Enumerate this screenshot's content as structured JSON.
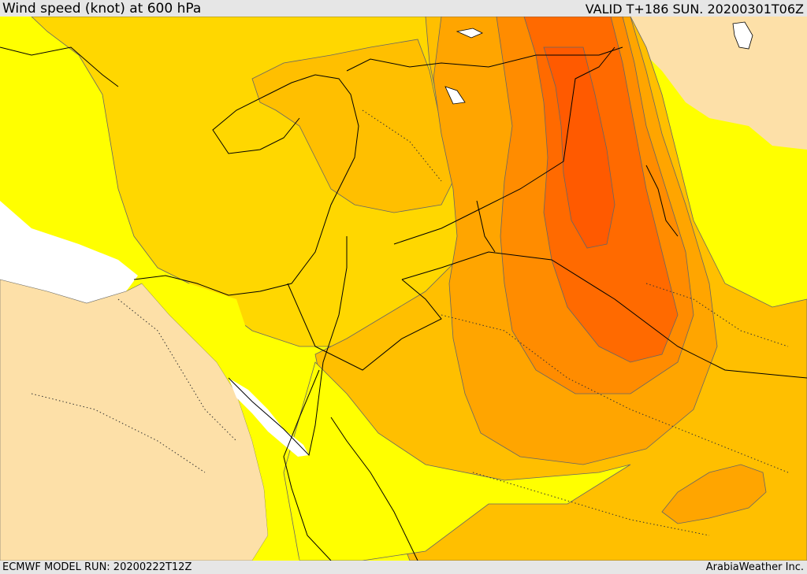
{
  "header": {
    "title": "Wind speed (knot) at 600 hPa",
    "valid": "VALID T+186 SUN. 20200301T06Z"
  },
  "footer": {
    "model_run": "ECMWF MODEL RUN: 20200222T12Z",
    "credit": "ArabiaWeather Inc."
  },
  "map": {
    "colors": {
      "land": "#fde0a8",
      "sea_missing": "#ffffff",
      "band_1": "#ffff00",
      "band_2": "#ffd700",
      "band_3": "#ffbf00",
      "band_4": "#ffa500",
      "band_5": "#ff8c00",
      "band_6": "#ff6a00",
      "band_7": "#ff5a00",
      "coastline": "#000000",
      "contour": "#666666"
    }
  }
}
